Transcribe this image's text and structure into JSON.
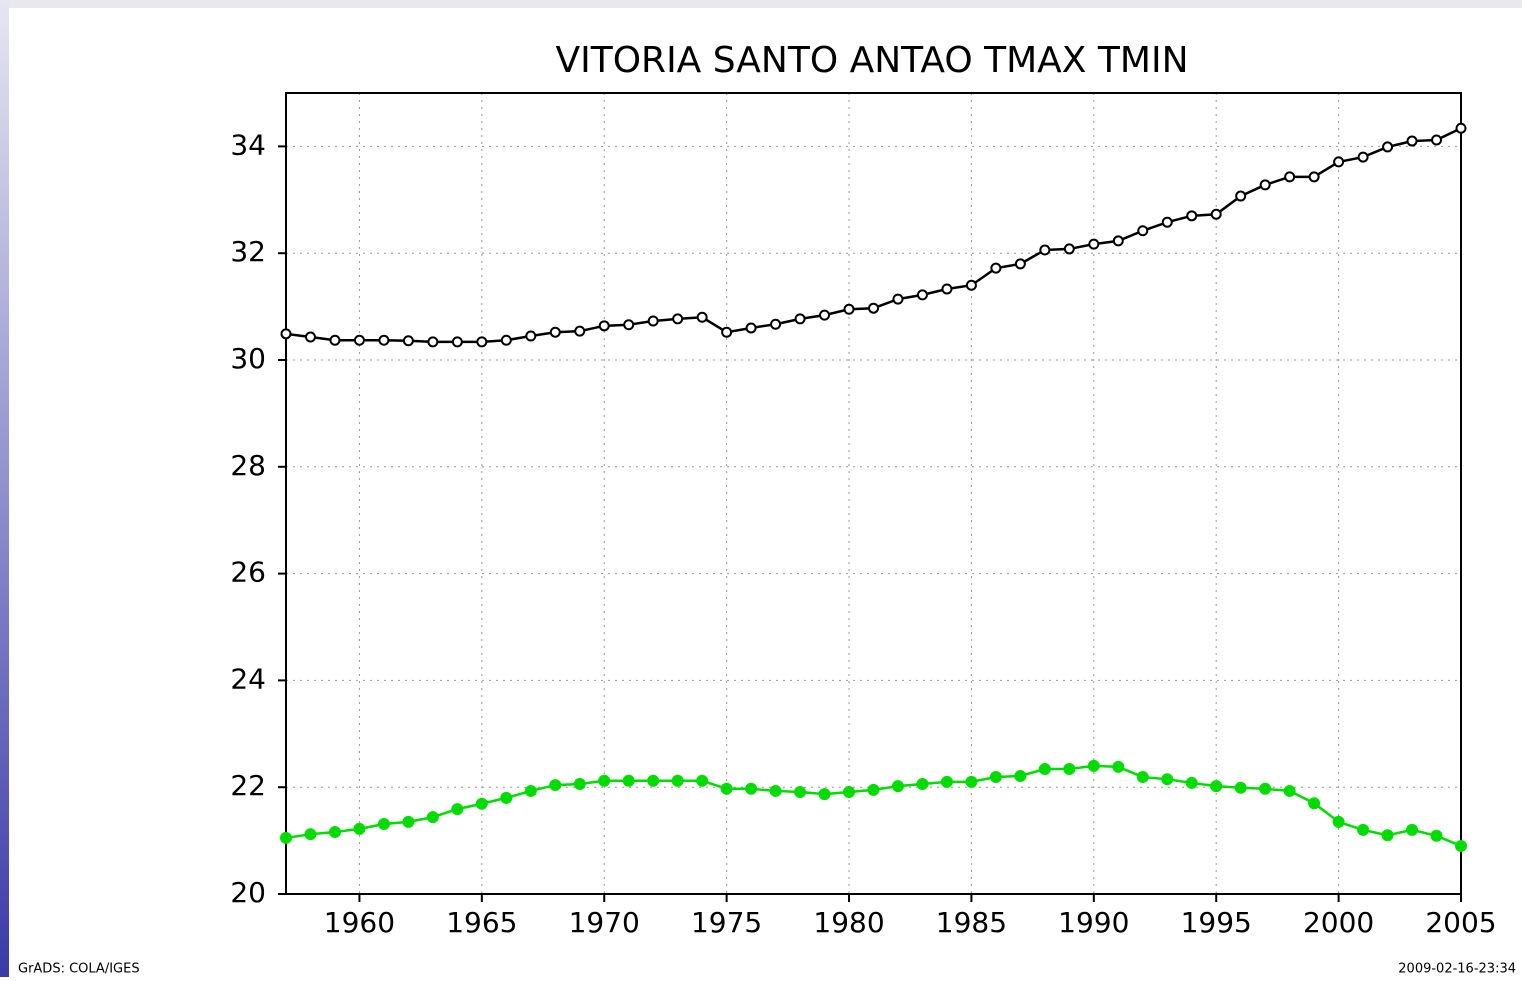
{
  "chart_data": {
    "type": "line",
    "title": "VITORIA  SANTO  ANTAO    TMAX  TMIN",
    "footer_left": "GrADS: COLA/IGES",
    "footer_right": "2009-02-16-23:34",
    "x": [
      1957,
      1958,
      1959,
      1960,
      1961,
      1962,
      1963,
      1964,
      1965,
      1966,
      1967,
      1968,
      1969,
      1970,
      1971,
      1972,
      1973,
      1974,
      1975,
      1976,
      1977,
      1978,
      1979,
      1980,
      1981,
      1982,
      1983,
      1984,
      1985,
      1986,
      1987,
      1988,
      1989,
      1990,
      1991,
      1992,
      1993,
      1994,
      1995,
      1996,
      1997,
      1998,
      1999,
      2000,
      2001,
      2002,
      2003,
      2004,
      2005
    ],
    "series": [
      {
        "color": "#000000",
        "marker": "open-circle",
        "values": [
          30.49,
          30.43,
          30.37,
          30.37,
          30.37,
          30.36,
          30.34,
          30.34,
          30.34,
          30.37,
          30.45,
          30.52,
          30.54,
          30.64,
          30.66,
          30.73,
          30.77,
          30.8,
          30.52,
          30.6,
          30.67,
          30.77,
          30.84,
          30.95,
          30.97,
          31.14,
          31.22,
          31.33,
          31.4,
          31.72,
          31.8,
          32.06,
          32.08,
          32.17,
          32.23,
          32.42,
          32.58,
          32.7,
          32.73,
          33.07,
          33.28,
          33.43,
          33.43,
          33.71,
          33.8,
          33.99,
          34.1,
          34.12,
          34.34
        ]
      },
      {
        "color": "#00dc00",
        "marker": "filled-circle",
        "values": [
          21.05,
          21.12,
          21.16,
          21.22,
          21.31,
          21.35,
          21.44,
          21.59,
          21.69,
          21.8,
          21.93,
          22.04,
          22.06,
          22.12,
          22.12,
          22.12,
          22.12,
          22.12,
          21.97,
          21.97,
          21.93,
          21.91,
          21.87,
          21.91,
          21.95,
          22.02,
          22.06,
          22.1,
          22.1,
          22.19,
          22.21,
          22.34,
          22.34,
          22.4,
          22.38,
          22.19,
          22.15,
          22.08,
          22.02,
          21.99,
          21.97,
          21.93,
          21.7,
          21.35,
          21.2,
          21.1,
          21.2,
          21.09,
          20.9
        ]
      }
    ],
    "xlim": [
      1957,
      2005
    ],
    "xticks": [
      1960,
      1965,
      1970,
      1975,
      1980,
      1985,
      1990,
      1995,
      2000,
      2005
    ],
    "ylim": [
      20,
      35
    ],
    "yticks": [
      20,
      22,
      24,
      26,
      28,
      30,
      32,
      34
    ],
    "grid": true
  }
}
